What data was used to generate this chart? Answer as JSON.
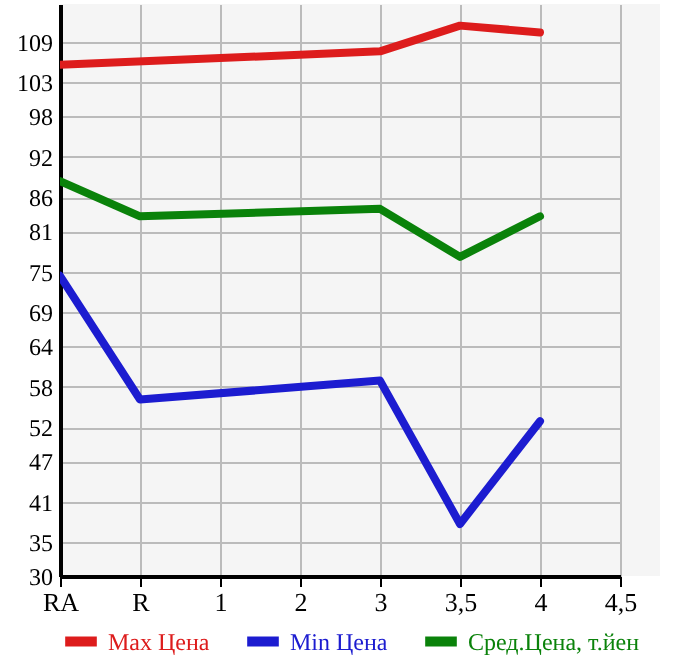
{
  "chart_data": {
    "type": "line",
    "categories": [
      "RA",
      "R",
      "1",
      "2",
      "3",
      "3,5",
      "4",
      "4,5"
    ],
    "series": [
      {
        "name": "Max Цена",
        "color": "#dd1c1c",
        "values": [
          105.6,
          null,
          null,
          null,
          107.6,
          111.4,
          110.4,
          null
        ]
      },
      {
        "name": "Min Цена",
        "color": "#1c1cd0",
        "values": [
          74.4,
          56.1,
          null,
          null,
          58.9,
          37.7,
          52.9,
          null
        ]
      },
      {
        "name": "Сред.Цена, т.йен",
        "color": "#0a820a",
        "values": [
          88.4,
          83.2,
          null,
          null,
          84.3,
          77.2,
          83.2,
          null
        ]
      }
    ],
    "ylim": [
      30,
      114.6
    ],
    "yticks": [
      30,
      35,
      41,
      47,
      52,
      58,
      64,
      69,
      75,
      81,
      86,
      92,
      98,
      103,
      109
    ],
    "grid": true,
    "legend": "bottom",
    "marker": "none",
    "line_style": "solid"
  }
}
